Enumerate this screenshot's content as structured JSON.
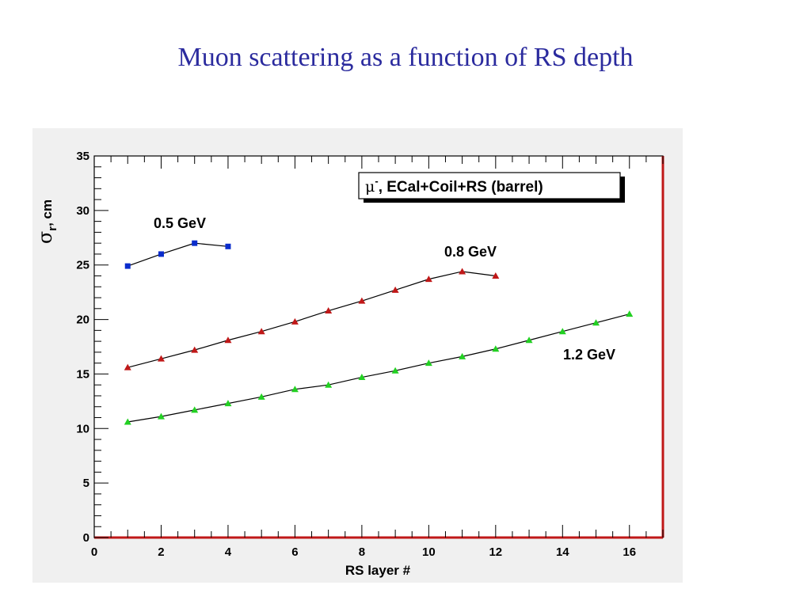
{
  "slide": {
    "title": "Muon scattering as a function of RS depth"
  },
  "chart_data": {
    "type": "scatter",
    "xlabel": "RS layer #",
    "ylabel_symbol": "σ",
    "ylabel_subscript": "r",
    "ylabel_unit": ", cm",
    "xlim": [
      0,
      17
    ],
    "ylim": [
      0,
      35
    ],
    "x_ticks": [
      0,
      2,
      4,
      6,
      8,
      10,
      12,
      14,
      16
    ],
    "y_ticks": [
      0,
      5,
      10,
      15,
      20,
      25,
      30,
      35
    ],
    "legend": {
      "symbol": "μ",
      "superscript": "-",
      "text": ", ECal+Coil+RS (barrel)",
      "placement": "top-right"
    },
    "series": [
      {
        "name": "0.5 GeV",
        "color": "#0a2ccc",
        "marker": "square",
        "x": [
          1,
          2,
          3,
          4
        ],
        "y": [
          24.9,
          26.0,
          27.0,
          26.7
        ]
      },
      {
        "name": "0.8 GeV",
        "color": "#c01818",
        "marker": "triangle",
        "x": [
          1,
          2,
          3,
          4,
          5,
          6,
          7,
          8,
          9,
          10,
          11,
          12
        ],
        "y": [
          15.6,
          16.4,
          17.2,
          18.1,
          18.9,
          19.8,
          20.8,
          21.7,
          22.7,
          23.7,
          24.4,
          24.0
        ]
      },
      {
        "name": "1.2 GeV",
        "color": "#22d022",
        "marker": "triangle",
        "x": [
          1,
          2,
          3,
          4,
          5,
          6,
          7,
          8,
          9,
          10,
          11,
          12,
          13,
          14,
          15,
          16
        ],
        "y": [
          10.6,
          11.1,
          11.7,
          12.3,
          12.9,
          13.6,
          14.0,
          14.7,
          15.3,
          16.0,
          16.6,
          17.3,
          18.1,
          18.9,
          19.7,
          20.5
        ]
      }
    ]
  }
}
